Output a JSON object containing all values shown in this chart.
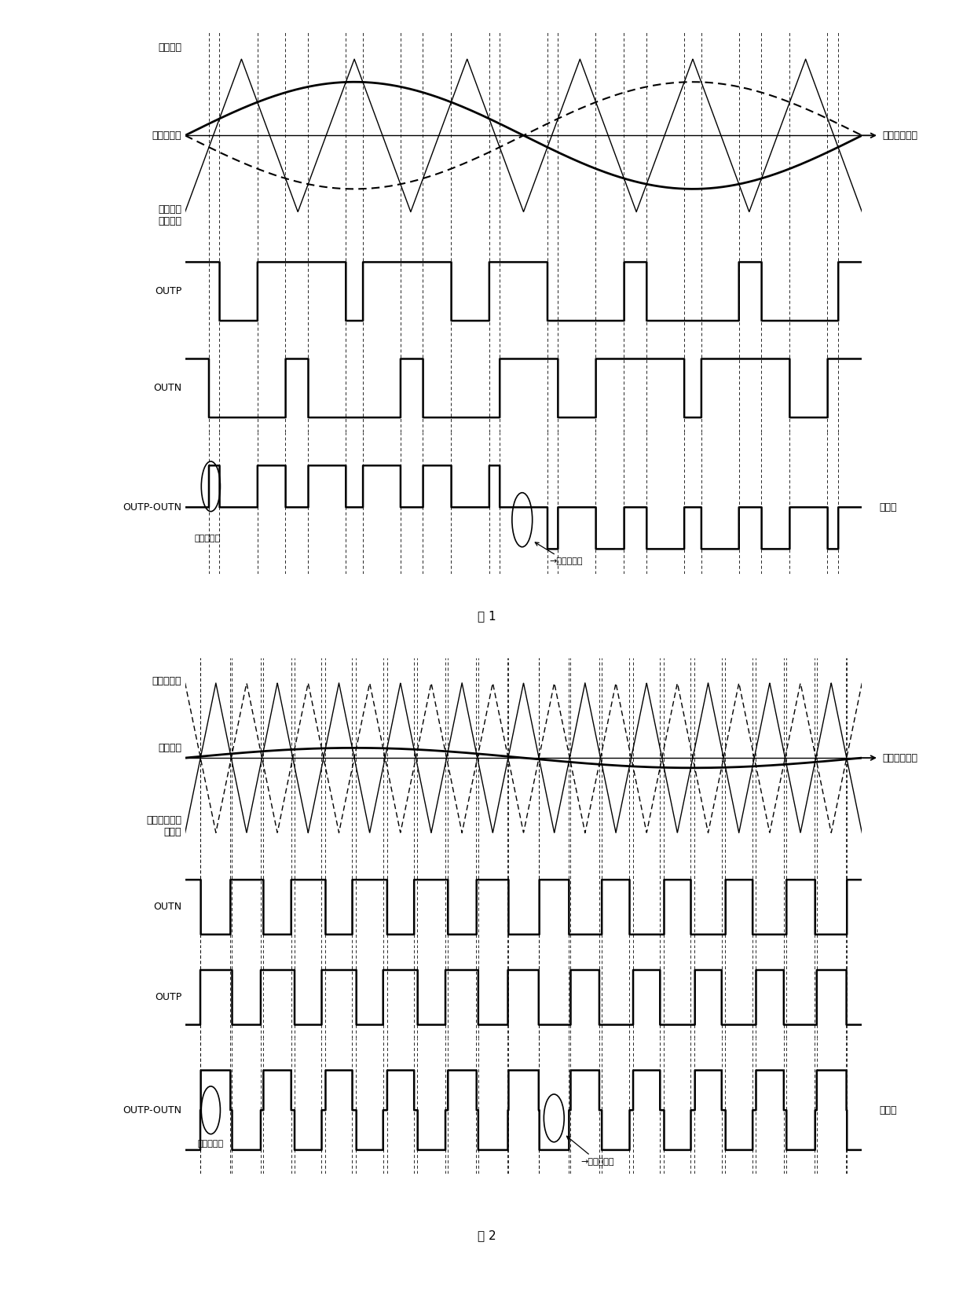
{
  "fig1_title": "图 1",
  "fig2_title": "图 2",
  "background_color": "#ffffff",
  "fig1_audio_amp": 0.7,
  "fig1_audio_freq": 1.0,
  "fig1_tri_freq": 6.0,
  "fig1_tri_amp": 1.0,
  "fig2_tri_freq": 11.0,
  "fig2_tri_amp": 0.9,
  "fig2_audio_amp": 0.12,
  "fig2_audio_freq": 1.0,
  "label_audio1": "音频信号",
  "label_tri1": "三角波比较",
  "label_inv_audio1": "反相后的\n音频信号",
  "label_outp1": "OUTP",
  "label_outn1": "OUTN",
  "label_diff1": "OUTP-OUTN",
  "label_zero1": "零电平",
  "label_signal_zero": "信号零点位置",
  "label_narrow1": "窄脉冲位置",
  "label_tri2": "三角波信号",
  "label_audio2": "音频信号",
  "label_inv_tri2": "反相后的三角\n波信号",
  "label_outn2": "OUTN",
  "label_outp2": "OUTP",
  "label_diff2": "OUTP-OUTN",
  "label_zero2": "零电平",
  "label_narrow2": "窄脉冲位置"
}
